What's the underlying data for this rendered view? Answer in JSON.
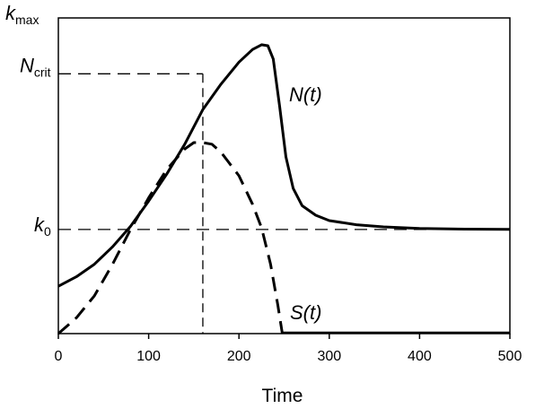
{
  "chart_data": {
    "type": "line",
    "title": "",
    "xlabel": "Time",
    "ylabel": "",
    "xlim": [
      0,
      500
    ],
    "ylim": [
      0,
      1
    ],
    "x_ticks": [
      0,
      100,
      200,
      300,
      400,
      500
    ],
    "grid": false,
    "y_markers": [
      {
        "id": "kmax",
        "main": "k",
        "sub": "max",
        "value": 1.0
      },
      {
        "id": "ncrit",
        "main": "N",
        "sub": "crit",
        "value": 0.823
      },
      {
        "id": "k0",
        "main": "k",
        "sub": "0",
        "value": 0.33
      }
    ],
    "reference_lines": {
      "ncrit_y": 0.823,
      "k0_y": 0.33,
      "vertical_x": 160
    },
    "series": [
      {
        "name": "N(t)",
        "label": "N(t)",
        "style": "solid",
        "points": [
          [
            0,
            0.15
          ],
          [
            20,
            0.18
          ],
          [
            40,
            0.22
          ],
          [
            60,
            0.275
          ],
          [
            80,
            0.34
          ],
          [
            100,
            0.42
          ],
          [
            120,
            0.505
          ],
          [
            140,
            0.6
          ],
          [
            160,
            0.71
          ],
          [
            180,
            0.79
          ],
          [
            200,
            0.86
          ],
          [
            215,
            0.9
          ],
          [
            225,
            0.915
          ],
          [
            232,
            0.912
          ],
          [
            238,
            0.87
          ],
          [
            245,
            0.72
          ],
          [
            252,
            0.56
          ],
          [
            260,
            0.46
          ],
          [
            270,
            0.405
          ],
          [
            285,
            0.375
          ],
          [
            300,
            0.358
          ],
          [
            330,
            0.345
          ],
          [
            360,
            0.338
          ],
          [
            400,
            0.333
          ],
          [
            450,
            0.331
          ],
          [
            500,
            0.33
          ]
        ]
      },
      {
        "name": "S(t)",
        "label": "S(t)",
        "style": "dashed",
        "points": [
          [
            0,
            0.0
          ],
          [
            20,
            0.05
          ],
          [
            40,
            0.12
          ],
          [
            60,
            0.22
          ],
          [
            80,
            0.33
          ],
          [
            100,
            0.43
          ],
          [
            120,
            0.52
          ],
          [
            140,
            0.585
          ],
          [
            150,
            0.605
          ],
          [
            160,
            0.605
          ],
          [
            170,
            0.6
          ],
          [
            180,
            0.575
          ],
          [
            200,
            0.5
          ],
          [
            215,
            0.41
          ],
          [
            225,
            0.335
          ],
          [
            235,
            0.22
          ],
          [
            243,
            0.09
          ],
          [
            248,
            0.0
          ]
        ]
      }
    ]
  }
}
